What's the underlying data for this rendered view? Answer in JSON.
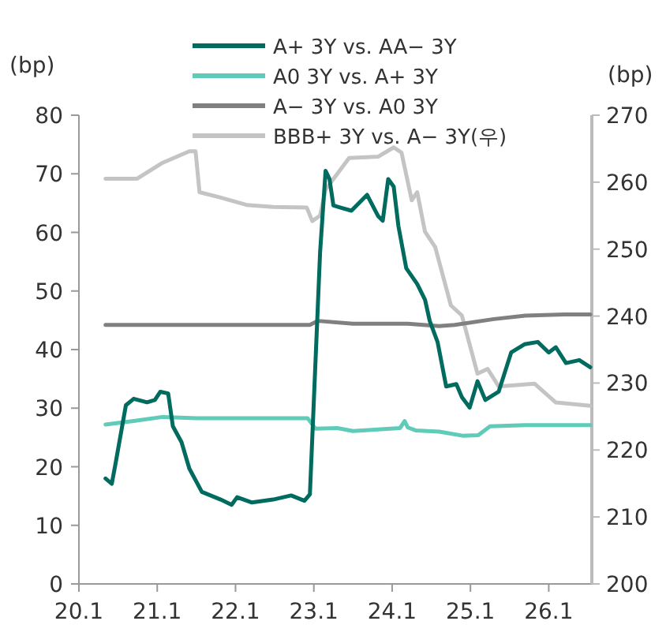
{
  "chart_data": {
    "type": "line",
    "ylabel": "(bp)",
    "y2label": "(bp)",
    "legend": "top",
    "marker": "none",
    "line_style": "solid",
    "grid": false,
    "xlim": [
      20.1,
      26.65
    ],
    "xticks": [
      20.1,
      21.1,
      22.1,
      23.1,
      24.1,
      25.1,
      26.1
    ],
    "ylim": [
      0,
      80
    ],
    "yticks": [
      0,
      10,
      20,
      30,
      40,
      50,
      60,
      70,
      80
    ],
    "y2lim": [
      200,
      270
    ],
    "y2ticks": [
      200,
      210,
      220,
      230,
      240,
      250,
      260,
      270
    ],
    "series": [
      {
        "name": "A+ 3Y vs. AA− 3Y",
        "color": "#006b5e",
        "x": [
          20.44,
          20.52,
          20.57,
          20.7,
          20.8,
          20.97,
          21.07,
          21.14,
          21.24,
          21.3,
          21.41,
          21.51,
          21.67,
          21.91,
          22.05,
          22.12,
          22.31,
          22.58,
          22.81,
          22.98,
          23.05,
          23.18,
          23.25,
          23.3,
          23.35,
          23.45,
          23.58,
          23.78,
          23.92,
          23.98,
          24.05,
          24.12,
          24.18,
          24.28,
          24.42,
          24.52,
          24.58,
          24.68,
          24.79,
          24.92,
          24.99,
          25.09,
          25.19,
          25.29,
          25.46,
          25.62,
          25.79,
          25.96,
          26.1,
          26.19,
          26.32,
          26.49,
          26.63
        ],
        "values": [
          18.0,
          17.1,
          20.7,
          30.5,
          31.6,
          31.0,
          31.4,
          32.8,
          32.5,
          26.9,
          24.2,
          19.7,
          15.7,
          14.4,
          13.5,
          14.8,
          13.9,
          14.4,
          15.1,
          14.2,
          15.3,
          56.6,
          70.5,
          69.1,
          64.6,
          64.2,
          63.7,
          66.4,
          62.8,
          62.0,
          69.1,
          67.8,
          61.1,
          53.9,
          51.2,
          48.5,
          44.9,
          41.3,
          33.7,
          34.1,
          31.9,
          30.1,
          34.6,
          31.4,
          32.8,
          39.5,
          40.9,
          41.3,
          39.5,
          40.4,
          37.7,
          38.2,
          37.0
        ]
      },
      {
        "name": "A0 3Y vs. A+ 3Y",
        "color": "#5fcbb8",
        "x": [
          20.44,
          20.8,
          21.17,
          21.6,
          22.6,
          23.02,
          23.12,
          23.4,
          23.6,
          24.2,
          24.26,
          24.3,
          24.4,
          24.7,
          25.0,
          25.2,
          25.35,
          25.8,
          26.63
        ],
        "values": [
          27.2,
          27.8,
          28.5,
          28.3,
          28.3,
          28.3,
          26.5,
          26.6,
          26.1,
          26.6,
          27.8,
          26.7,
          26.2,
          26.0,
          25.3,
          25.4,
          26.9,
          27.1,
          27.1
        ]
      },
      {
        "name": "A− 3Y vs. A0 3Y",
        "color": "#808080",
        "x": [
          20.44,
          21.6,
          22.6,
          23.05,
          23.15,
          23.6,
          24.3,
          24.7,
          24.9,
          25.4,
          25.8,
          26.3,
          26.63
        ],
        "values": [
          44.2,
          44.2,
          44.2,
          44.2,
          44.9,
          44.4,
          44.4,
          44.0,
          44.2,
          45.2,
          45.8,
          46.0,
          46.0
        ]
      },
      {
        "name": "BBB+ 3Y vs. A− 3Y(우)",
        "color": "#c4c4c4",
        "axis": "y2",
        "x": [
          20.44,
          20.84,
          21.17,
          21.51,
          21.59,
          21.64,
          21.91,
          22.24,
          22.58,
          23.01,
          23.08,
          23.18,
          23.25,
          23.55,
          23.92,
          24.12,
          24.22,
          24.35,
          24.42,
          24.52,
          24.65,
          24.85,
          24.99,
          25.19,
          25.32,
          25.46,
          25.92,
          26.19,
          26.63
        ],
        "values": [
          260.5,
          260.5,
          262.9,
          264.6,
          264.6,
          258.5,
          257.7,
          256.6,
          256.3,
          256.2,
          254.2,
          255.0,
          258.9,
          263.6,
          263.8,
          265.2,
          264.4,
          257.3,
          258.5,
          252.6,
          250.3,
          241.6,
          240.1,
          231.4,
          232.1,
          229.5,
          229.9,
          227.1,
          226.6
        ]
      }
    ]
  }
}
